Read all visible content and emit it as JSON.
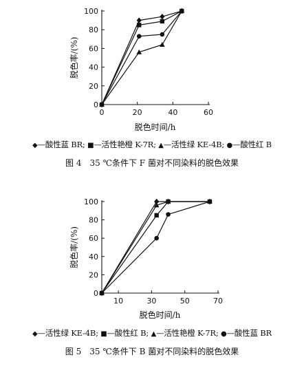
{
  "chart_data": [
    {
      "type": "line",
      "title": "",
      "xlabel": "脱色时间/h",
      "ylabel": "脱色率/(%)",
      "xlim": [
        0,
        60
      ],
      "ylim": [
        0,
        100
      ],
      "xticks": [
        0,
        20,
        40,
        60
      ],
      "yticks": [
        0,
        20,
        40,
        60,
        80,
        100
      ],
      "series": [
        {
          "name": "酸性蓝 BR",
          "marker": "diamond",
          "x": [
            0,
            21,
            34,
            45
          ],
          "y": [
            0,
            90,
            94,
            100
          ]
        },
        {
          "name": "活性艳橙 K-7R",
          "marker": "square",
          "x": [
            0,
            21,
            34,
            45
          ],
          "y": [
            0,
            85,
            89,
            100
          ]
        },
        {
          "name": "活性绿 KE-4B",
          "marker": "triangle",
          "x": [
            0,
            21,
            34,
            45
          ],
          "y": [
            0,
            56,
            64,
            100
          ]
        },
        {
          "name": "酸性红 B",
          "marker": "circle",
          "x": [
            0,
            21,
            34,
            45
          ],
          "y": [
            0,
            73,
            75,
            100
          ]
        }
      ],
      "caption": "图 4　35 ℃条件下 F 菌对不同染料的脱色效果"
    },
    {
      "type": "line",
      "title": "",
      "xlabel": "脱色时间/h",
      "ylabel": "脱色率/(%)",
      "xlim": [
        0,
        70
      ],
      "ylim": [
        0,
        100
      ],
      "xticks": [
        10,
        30,
        50,
        70
      ],
      "yticks": [
        0,
        20,
        40,
        60,
        80,
        100
      ],
      "series": [
        {
          "name": "活性绿 KE-4B",
          "marker": "diamond",
          "x": [
            0,
            33,
            40,
            65
          ],
          "y": [
            0,
            100,
            100,
            100
          ]
        },
        {
          "name": "酸性红 B",
          "marker": "square",
          "x": [
            0,
            33,
            40,
            65
          ],
          "y": [
            0,
            85,
            100,
            100
          ]
        },
        {
          "name": "活性艳橙 K-7R",
          "marker": "triangle",
          "x": [
            0,
            33,
            40,
            65
          ],
          "y": [
            0,
            96,
            100,
            100
          ]
        },
        {
          "name": "酸性蓝 BR",
          "marker": "circle",
          "x": [
            0,
            33,
            40,
            65
          ],
          "y": [
            0,
            60,
            86,
            100
          ]
        }
      ],
      "caption": "图 5　35 ℃条件下 B 菌对不同染料的脱色效果"
    }
  ],
  "legend_separator": "—",
  "legend_delimiter": ";"
}
